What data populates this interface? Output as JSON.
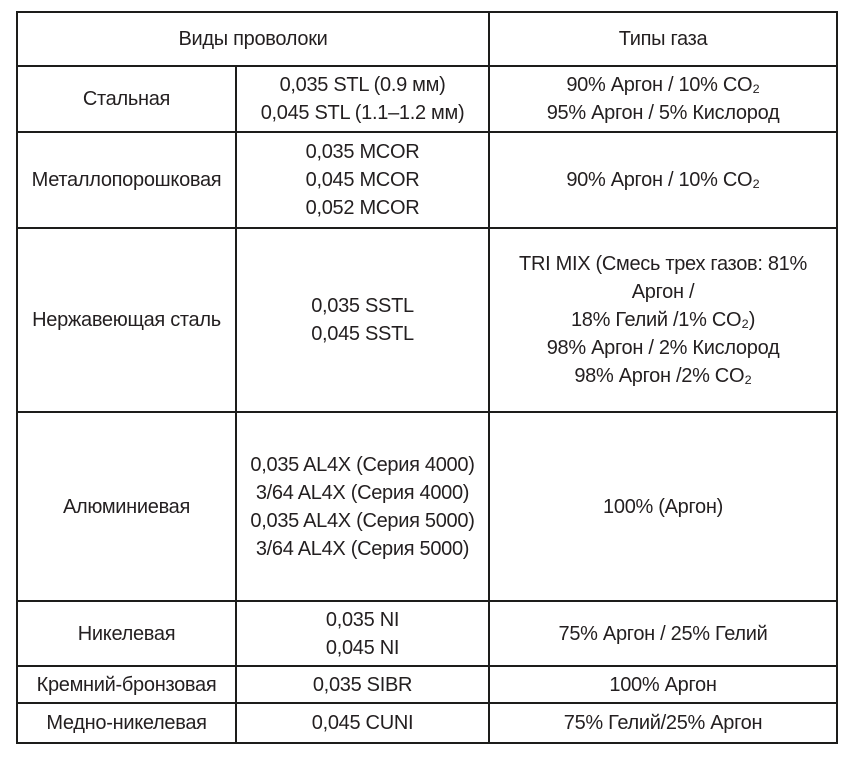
{
  "colors": {
    "border": "#1d1d1b",
    "text": "#231f20",
    "background": "#ffffff"
  },
  "table": {
    "header": {
      "wire_types_label": "Виды проволоки",
      "gas_types_label": "Типы газа"
    },
    "rows": [
      {
        "material": "Стальная",
        "wires": [
          "0,035 STL (0.9 мм)",
          "0,045 STL (1.1–1.2 мм)"
        ],
        "gases": [
          "90% Аргон / 10% CO₂",
          "95% Аргон / 5% Кислород"
        ]
      },
      {
        "material": "Металлопорошковая",
        "wires": [
          "0,035 MCOR",
          "0,045 MCOR",
          "0,052 MCOR"
        ],
        "gases": [
          "90% Аргон / 10% CO₂"
        ]
      },
      {
        "material": "Нержавеющая сталь",
        "wires": [
          "0,035 SSTL",
          "0,045 SSTL"
        ],
        "gases": [
          "TRI MIX (Смесь трех газов: 81%",
          "Аргон /",
          "18% Гелий /1% CO₂)",
          "98% Аргон / 2% Кислород",
          "98% Аргон /2% CO₂"
        ]
      },
      {
        "material": "Алюминиевая",
        "wires": [
          "0,035 AL4X (Серия 4000)",
          "3/64 AL4X (Серия 4000)",
          "0,035 AL4X (Серия 5000)",
          "3/64 AL4X (Серия 5000)"
        ],
        "gases": [
          "100% (Аргон)"
        ]
      },
      {
        "material": "Никелевая",
        "wires": [
          "0,035 NI",
          "0,045 NI"
        ],
        "gases": [
          "75% Аргон / 25% Гелий"
        ]
      },
      {
        "material": "Кремний-бронзовая",
        "wires": [
          "0,035 SIBR"
        ],
        "gases": [
          "100% Аргон"
        ]
      },
      {
        "material": "Медно-никелевая",
        "wires": [
          "0,045 CUNI"
        ],
        "gases": [
          "75% Гелий/25% Аргон"
        ]
      }
    ]
  }
}
